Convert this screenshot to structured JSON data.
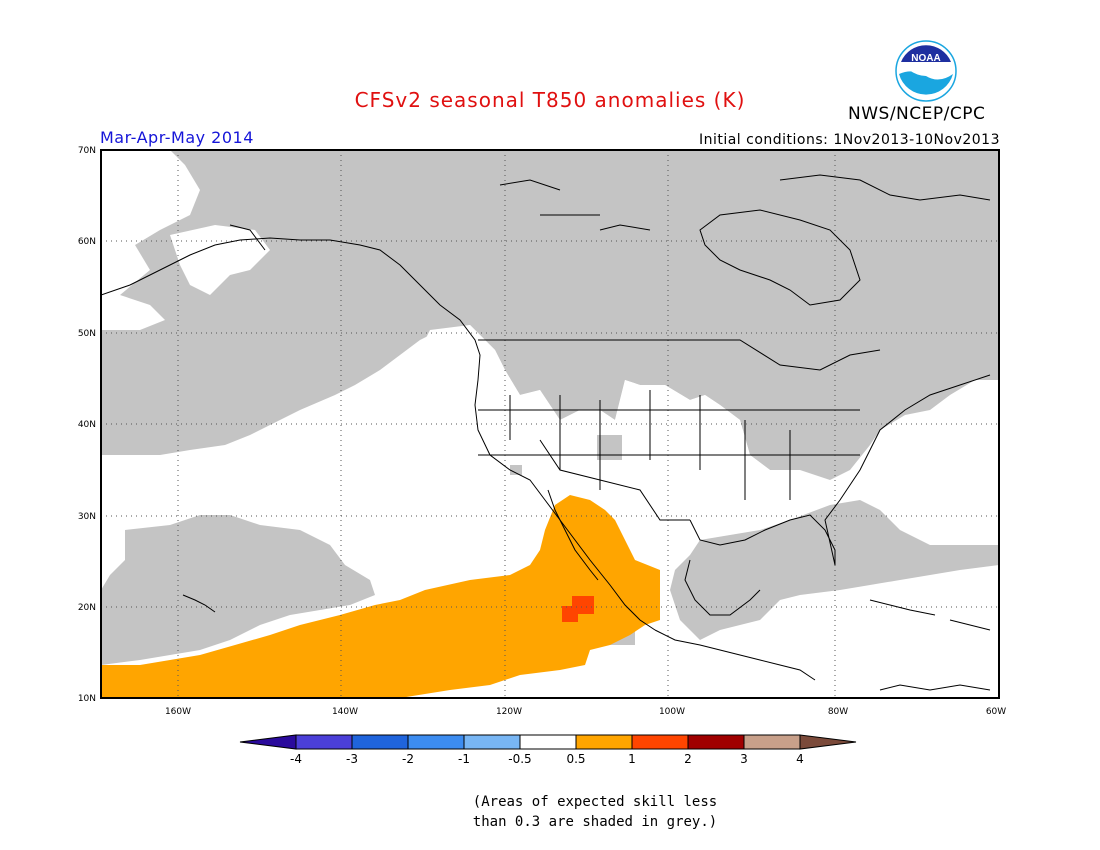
{
  "title": "CFSv2 seasonal T850 anomalies (K)",
  "agency": "NWS/NCEP/CPC",
  "logo_text": "NOAA",
  "season": "Mar-Apr-May 2014",
  "initial_conditions": "Initial conditions: 1Nov2013-10Nov2013",
  "map": {
    "lat_labels": [
      "70N",
      "60N",
      "50N",
      "40N",
      "30N",
      "20N",
      "10N"
    ],
    "lon_labels": [
      "160W",
      "140W",
      "120W",
      "100W",
      "80W",
      "60W"
    ],
    "colors": {
      "grey": "#c4c4c4",
      "orange": "#ffa500",
      "red_orange": "#ff4500",
      "ocean_white": "#ffffff"
    }
  },
  "colorbar": {
    "labels": [
      "-4",
      "-3",
      "-2",
      "-1",
      "-0.5",
      "0.5",
      "1",
      "2",
      "3",
      "4"
    ],
    "colors": [
      "#2a0a9c",
      "#4b3fd8",
      "#1f64dc",
      "#3c8cf0",
      "#78b6f4",
      "#ffffff",
      "#ffa500",
      "#ff4500",
      "#a00000",
      "#c8a08a",
      "#7b4a3a"
    ]
  },
  "note": {
    "line1": "(Areas of expected skill less",
    "line2": "than 0.3 are shaded in grey.)"
  }
}
